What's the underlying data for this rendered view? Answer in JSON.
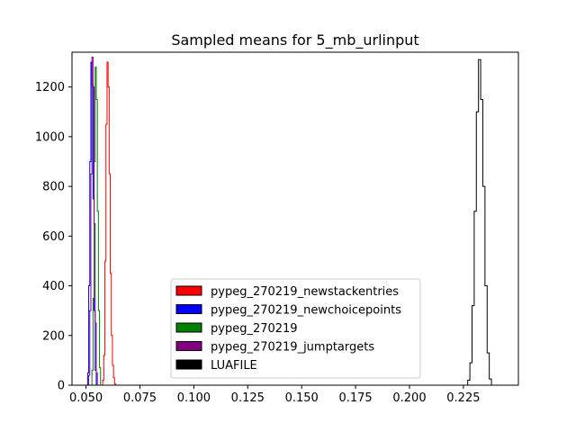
{
  "chart_data": {
    "type": "histogram",
    "title": "Sampled means for 5_mb_urlinput",
    "xlabel": "",
    "ylabel": "",
    "xlim": [
      0.0435,
      0.2505
    ],
    "ylim": [
      0,
      1340
    ],
    "xticks": [
      0.05,
      0.075,
      0.1,
      0.125,
      0.15,
      0.175,
      0.2,
      0.225
    ],
    "xtick_labels": [
      "0.050",
      "0.075",
      "0.100",
      "0.125",
      "0.150",
      "0.175",
      "0.200",
      "0.225"
    ],
    "yticks": [
      0,
      200,
      400,
      600,
      800,
      1000,
      1200
    ],
    "ytick_labels": [
      "0",
      "200",
      "400",
      "600",
      "800",
      "1000",
      "1200"
    ],
    "grid": false,
    "legend_position": "lower-center",
    "series": [
      {
        "name": "pypeg_270219_newstackentries",
        "color": "#ff0000",
        "x": [
          0.0575,
          0.058,
          0.0585,
          0.059,
          0.0595,
          0.06,
          0.0605,
          0.061,
          0.0615,
          0.062,
          0.0625,
          0.063,
          0.0635,
          0.064
        ],
        "counts": [
          0,
          20,
          120,
          500,
          1050,
          1300,
          1200,
          850,
          450,
          200,
          80,
          30,
          5,
          0
        ]
      },
      {
        "name": "pypeg_270219_newchoicepoints",
        "color": "#0000ff",
        "x": [
          0.0505,
          0.051,
          0.0515,
          0.052,
          0.0525,
          0.053,
          0.0535,
          0.054,
          0.0545,
          0.055
        ],
        "counts": [
          0,
          50,
          400,
          900,
          1300,
          1210,
          750,
          300,
          60,
          0
        ]
      },
      {
        "name": "pypeg_270219",
        "color": "#008000",
        "x": [
          0.0525,
          0.053,
          0.0535,
          0.054,
          0.0545,
          0.055,
          0.0555,
          0.056,
          0.0565,
          0.057
        ],
        "counts": [
          0,
          60,
          350,
          900,
          1280,
          1150,
          700,
          300,
          70,
          0
        ]
      },
      {
        "name": "pypeg_270219_jumptargets",
        "color": "#800080",
        "x": [
          0.051,
          0.0515,
          0.052,
          0.0525,
          0.053,
          0.0535,
          0.054,
          0.0545,
          0.055,
          0.0555
        ],
        "counts": [
          0,
          40,
          300,
          850,
          1320,
          1200,
          650,
          250,
          50,
          0
        ]
      },
      {
        "name": "LUAFILE",
        "color": "#000000",
        "x": [
          0.2265,
          0.2275,
          0.2285,
          0.2295,
          0.2305,
          0.2315,
          0.2325,
          0.2335,
          0.2345,
          0.2355,
          0.2365,
          0.2375,
          0.2385
        ],
        "counts": [
          0,
          20,
          90,
          320,
          700,
          1100,
          1310,
          1150,
          800,
          400,
          130,
          25,
          0
        ]
      }
    ]
  }
}
